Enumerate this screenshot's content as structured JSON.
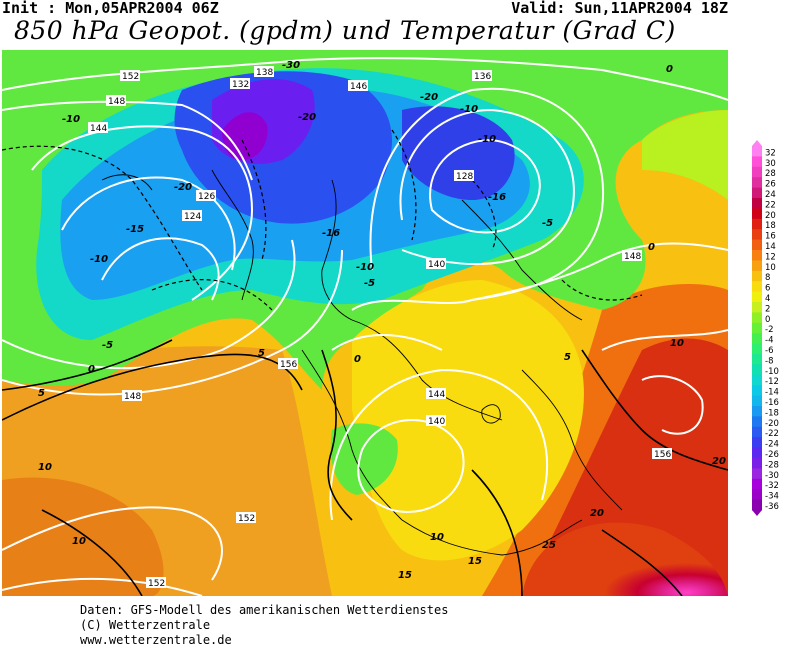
{
  "header": {
    "init": "Init : Mon,05APR2004 06Z",
    "valid": "Valid: Sun,11APR2004 18Z",
    "title": "850 hPa Geopot. (gpdm) und Temperatur (Grad C)"
  },
  "colors": {
    "temp_levels": [
      -36,
      -34,
      -32,
      -30,
      -28,
      -26,
      -24,
      -22,
      -20,
      -18,
      -16,
      -14,
      -12,
      -10,
      -8,
      -6,
      -4,
      -2,
      0,
      2,
      4,
      6,
      8,
      10,
      12,
      14,
      16,
      18,
      20,
      22,
      24,
      26,
      28,
      30,
      32
    ],
    "temp_colors": [
      "#8a00b0",
      "#9b00c8",
      "#a800dc",
      "#9a26e0",
      "#7a1fe8",
      "#5a28f0",
      "#3c3cf0",
      "#2a5af0",
      "#1e78f0",
      "#1a9af0",
      "#12b8ec",
      "#0ccae6",
      "#10d8d0",
      "#12e0b0",
      "#1ee890",
      "#2ef070",
      "#44f050",
      "#66f038",
      "#90f028",
      "#c8f020",
      "#f0f010",
      "#f8dc10",
      "#f8c010",
      "#f8a010",
      "#f88010",
      "#f06010",
      "#e84010",
      "#e02010",
      "#d00018",
      "#c00040",
      "#d01878",
      "#e030a0",
      "#f040c0",
      "#ff50d8",
      "#ff80f0"
    ]
  },
  "map": {
    "geopotential_labels": [
      "152",
      "148",
      "144",
      "132",
      "138",
      "146",
      "136",
      "128",
      "124",
      "126",
      "140",
      "156"
    ],
    "temperature_labels": [
      "-30",
      "-20",
      "-16",
      "-15",
      "-10",
      "-5",
      "0",
      "5",
      "10",
      "15",
      "20",
      "25"
    ]
  },
  "scale": {
    "labels": [
      "32",
      "30",
      "28",
      "26",
      "24",
      "22",
      "20",
      "18",
      "16",
      "14",
      "12",
      "10",
      "8",
      "6",
      "4",
      "2",
      "0",
      "-2",
      "-4",
      "-6",
      "-8",
      "-10",
      "-12",
      "-14",
      "-16",
      "-18",
      "-20",
      "-22",
      "-24",
      "-26",
      "-28",
      "-30",
      "-32",
      "-34",
      "-36"
    ]
  },
  "credits": {
    "line1": "Daten: GFS-Modell des amerikanischen Wetterdienstes",
    "line2": "(C) Wetterzentrale",
    "line3": "www.wetterzentrale.de"
  }
}
